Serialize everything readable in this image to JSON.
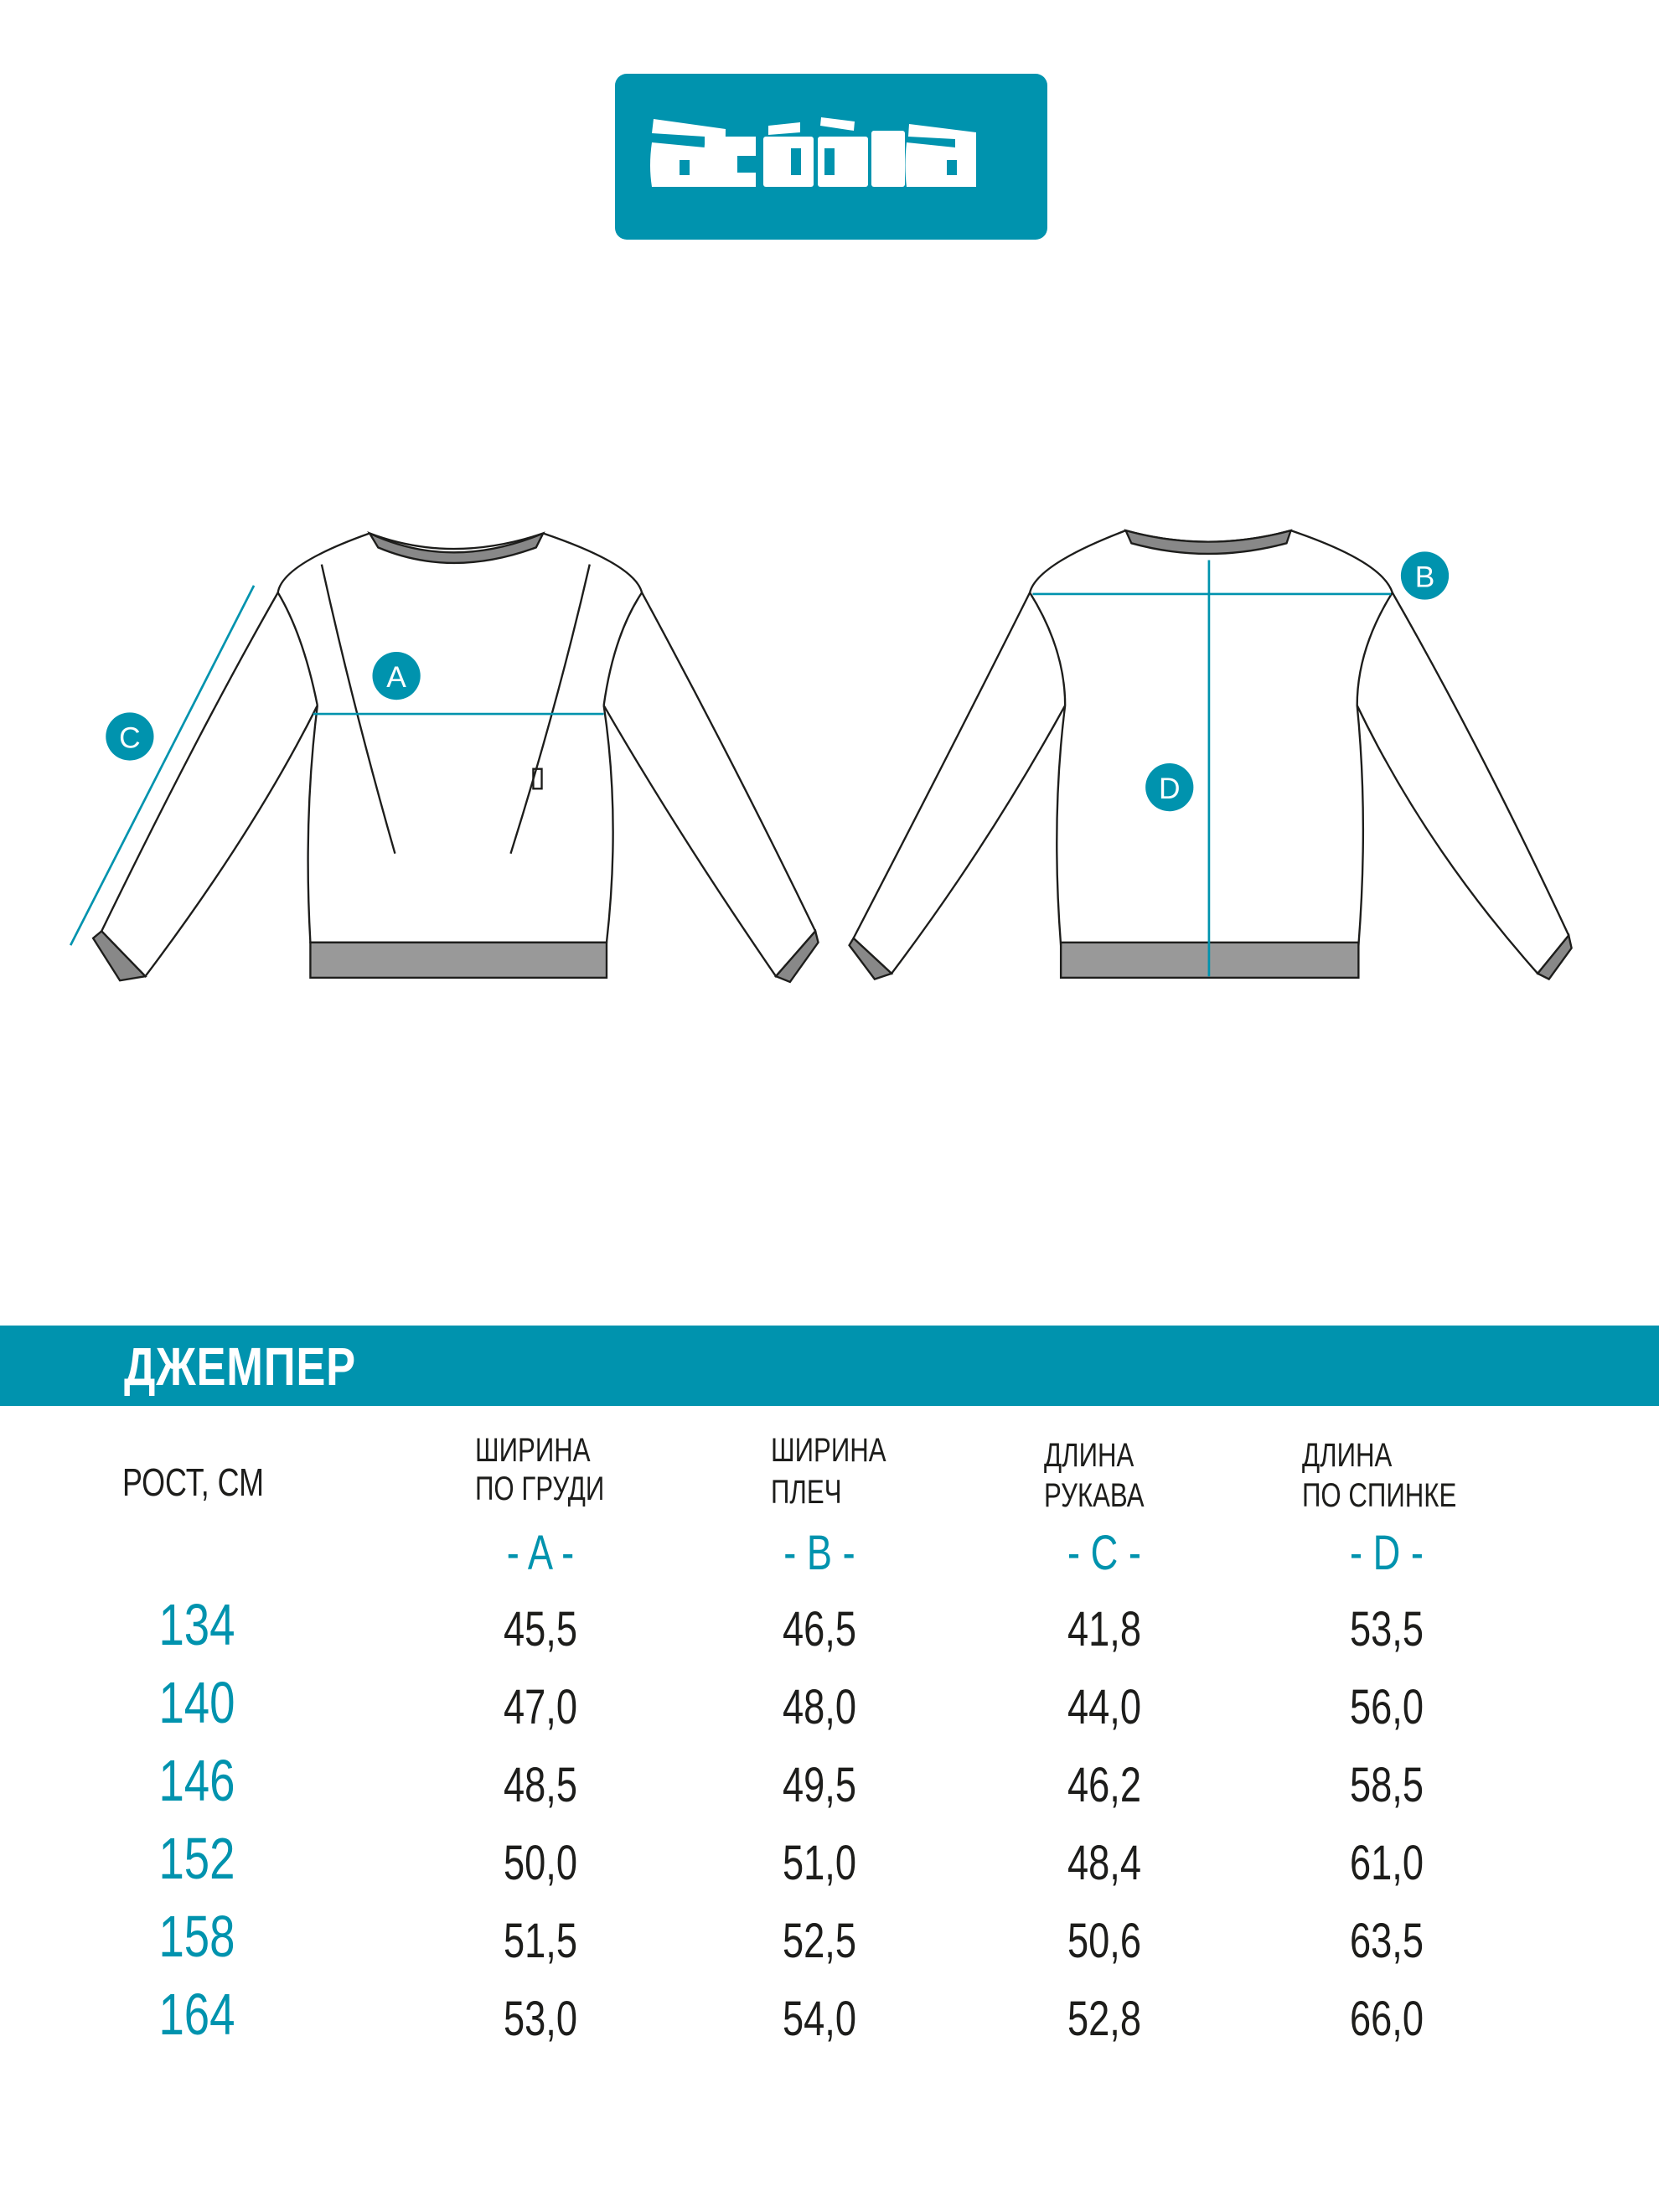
{
  "brand": {
    "logo_text": "acóòla",
    "color": "#0093ae"
  },
  "markers": {
    "a": "A",
    "b": "B",
    "c": "C",
    "d": "D"
  },
  "product": {
    "title": "ДЖЕМПЕР"
  },
  "table": {
    "headers": [
      {
        "line1": "РОСТ, СМ",
        "line2": "",
        "letter": ""
      },
      {
        "line1": "ШИРИНА",
        "line2": "ПО ГРУДИ",
        "letter": "- A -"
      },
      {
        "line1": "ШИРИНА",
        "line2": "ПЛЕЧ",
        "letter": "- B -"
      },
      {
        "line1": "ДЛИНА",
        "line2": "РУКАВА",
        "letter": "- C -"
      },
      {
        "line1": "ДЛИНА",
        "line2": "ПО СПИНКЕ",
        "letter": "- D -"
      }
    ],
    "rows": [
      {
        "height": "134",
        "a": "45,5",
        "b": "46,5",
        "c": "41,8",
        "d": "53,5"
      },
      {
        "height": "140",
        "a": "47,0",
        "b": "48,0",
        "c": "44,0",
        "d": "56,0"
      },
      {
        "height": "146",
        "a": "48,5",
        "b": "49,5",
        "c": "46,2",
        "d": "58,5"
      },
      {
        "height": "152",
        "a": "50,0",
        "b": "51,0",
        "c": "48,4",
        "d": "61,0"
      },
      {
        "height": "158",
        "a": "51,5",
        "b": "52,5",
        "c": "50,6",
        "d": "63,5"
      },
      {
        "height": "164",
        "a": "53,0",
        "b": "54,0",
        "c": "52,8",
        "d": "66,0"
      }
    ]
  }
}
